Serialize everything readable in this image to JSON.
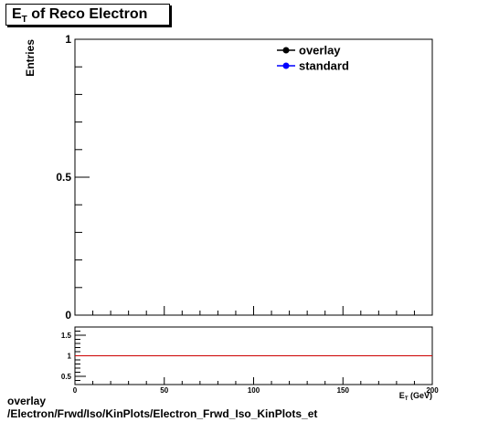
{
  "title": {
    "main": "E",
    "sub": "T",
    "rest": " of Reco Electron"
  },
  "caption": {
    "line1": "overlay",
    "line2": "/Electron/Frwd/Iso/KinPlots/Electron_Frwd_Iso_KinPlots_et"
  },
  "chart_data": [
    {
      "type": "line",
      "ylabel": "Entries",
      "xlim": [
        0,
        200
      ],
      "ylim": [
        0,
        1
      ],
      "y_tick_labels": [
        "0",
        "0.5",
        "1"
      ],
      "legend_position": "top-right",
      "series": [
        {
          "name": "overlay",
          "color": "#000000",
          "marker": "filled-circle",
          "values": []
        },
        {
          "name": "standard",
          "color": "#0000ff",
          "marker": "filled-circle",
          "values": []
        }
      ]
    },
    {
      "type": "line",
      "xlabel": "E_T (GeV)",
      "xlim": [
        0,
        200
      ],
      "ylim": [
        0.3,
        1.7
      ],
      "x_tick_labels": [
        "0",
        "50",
        "100",
        "150",
        "200"
      ],
      "y_tick_labels": [
        "0.5",
        "1",
        "1.5"
      ],
      "reference_line": {
        "y": 1,
        "color": "#cc0000"
      }
    }
  ]
}
